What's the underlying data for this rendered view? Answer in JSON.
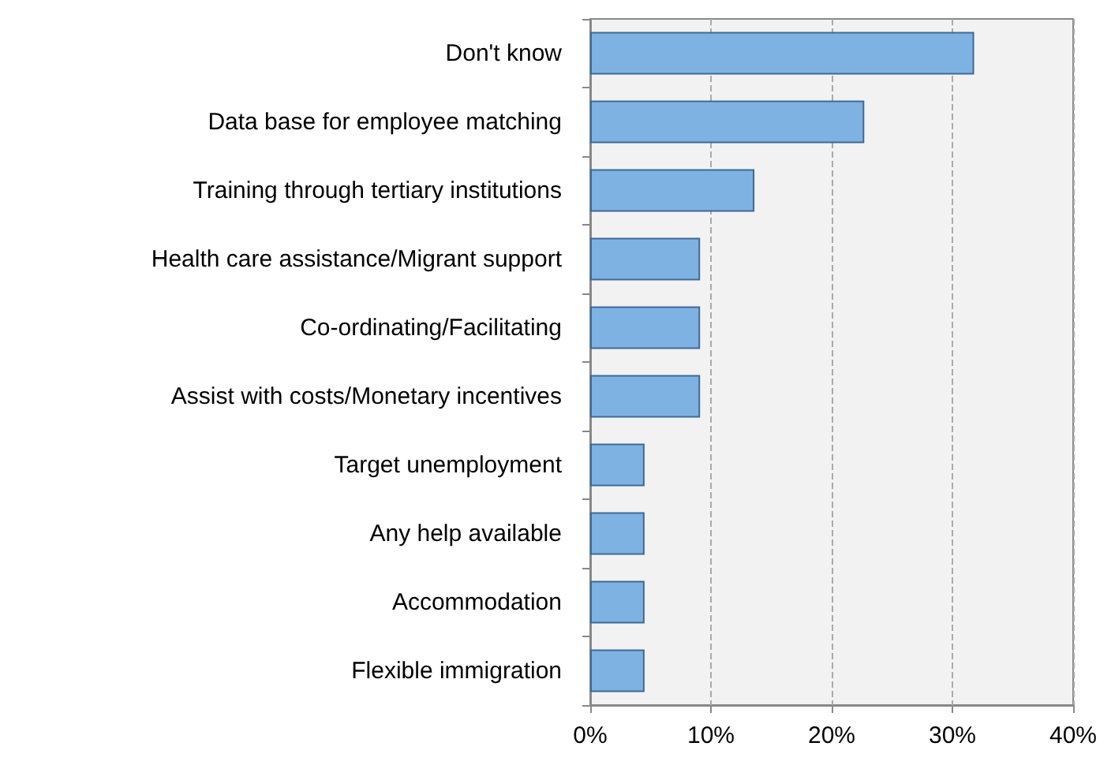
{
  "chart_data": {
    "type": "bar",
    "orientation": "horizontal",
    "categories": [
      "Don't know",
      "Data base for employee matching",
      "Training through tertiary institutions",
      "Health care assistance/Migrant support",
      "Co-ordinating/Facilitating",
      "Assist with costs/Monetary incentives",
      "Target unemployment",
      "Any help available",
      "Accommodation",
      "Flexible immigration"
    ],
    "values": [
      31.8,
      22.7,
      13.6,
      9.1,
      9.1,
      9.1,
      4.5,
      4.5,
      4.5,
      4.5
    ],
    "color": "#7eb2e3",
    "xlim": [
      0,
      40
    ],
    "xticks": [
      {
        "value": 0,
        "label": "0%"
      },
      {
        "value": 10,
        "label": "10%"
      },
      {
        "value": 20,
        "label": "20%"
      },
      {
        "value": 30,
        "label": "30%"
      },
      {
        "value": 40,
        "label": "40%"
      }
    ],
    "grid": "x"
  }
}
